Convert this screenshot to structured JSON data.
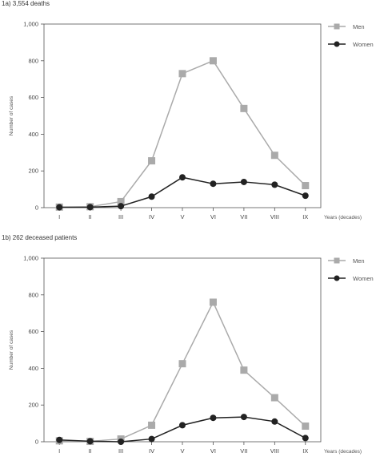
{
  "chart_data": [
    {
      "type": "line",
      "title": "1a) 3,554 deaths",
      "xlabel": "Years (decades)",
      "ylabel": "Number of cases",
      "categories": [
        "I",
        "II",
        "III",
        "IV",
        "V",
        "VI",
        "VII",
        "VIII",
        "IX"
      ],
      "yticks": [
        "0",
        "200",
        "400",
        "600",
        "800",
        "1,000"
      ],
      "ylim": [
        0,
        1000
      ],
      "grid": false,
      "legend_position": "top-right",
      "series": [
        {
          "name": "Men",
          "color": "#aaaaaa",
          "marker": "square",
          "values": [
            3,
            5,
            33,
            255,
            730,
            800,
            540,
            285,
            120
          ]
        },
        {
          "name": "Women",
          "color": "#222222",
          "marker": "circle",
          "values": [
            2,
            3,
            8,
            60,
            165,
            130,
            140,
            125,
            65
          ]
        }
      ]
    },
    {
      "type": "line",
      "title": "1b) 262 deceased patients",
      "xlabel": "Years (decades)",
      "ylabel": "Number of cases",
      "categories": [
        "I",
        "II",
        "III",
        "IV",
        "V",
        "VI",
        "VII",
        "VIII",
        "IX"
      ],
      "yticks": [
        "0",
        "200",
        "400",
        "600",
        "800",
        "1,000"
      ],
      "ylim": [
        0,
        1000
      ],
      "grid": false,
      "legend_position": "top-right",
      "series": [
        {
          "name": "Men",
          "color": "#aaaaaa",
          "marker": "square",
          "values": [
            5,
            2,
            15,
            90,
            425,
            760,
            390,
            240,
            85
          ]
        },
        {
          "name": "Women",
          "color": "#222222",
          "marker": "circle",
          "values": [
            10,
            3,
            0,
            15,
            90,
            130,
            135,
            110,
            20
          ]
        }
      ]
    }
  ]
}
